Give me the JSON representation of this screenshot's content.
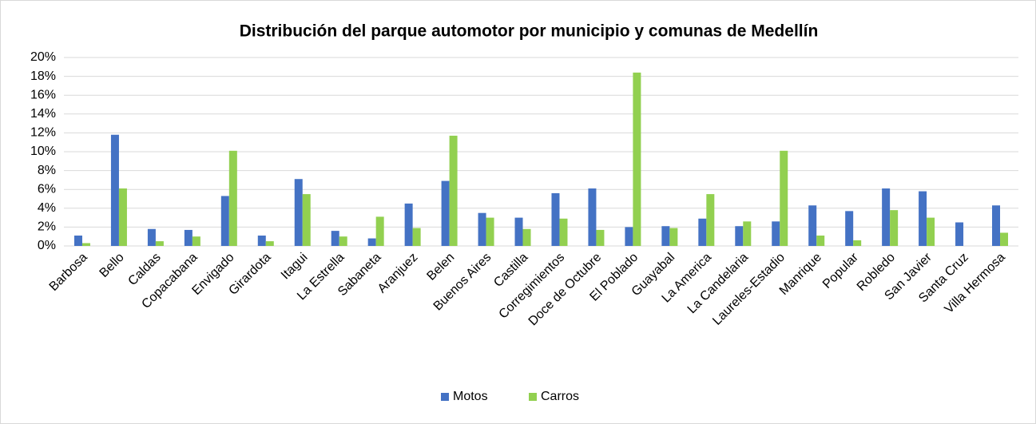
{
  "chart_data": {
    "type": "bar",
    "title": "Distribución del parque automotor por municipio y comunas de Medellín",
    "categories": [
      "Barbosa",
      "Bello",
      "Caldas",
      "Copacabana",
      "Envigado",
      "Girardota",
      "Itagui",
      "La Estrella",
      "Sabaneta",
      "Aranjuez",
      "Belen",
      "Buenos Aires",
      "Castilla",
      "Corregimientos",
      "Doce de Octubre",
      "El Poblado",
      "Guayabal",
      "La America",
      "La Candelaria",
      "Laureles-Estadio",
      "Manrique",
      "Popular",
      "Robledo",
      "San Javier",
      "Santa Cruz",
      "Villa Hermosa"
    ],
    "series": [
      {
        "name": "Motos",
        "color": "#4472c4",
        "values": [
          1.1,
          11.8,
          1.8,
          1.7,
          5.3,
          1.1,
          7.1,
          1.6,
          0.8,
          4.5,
          6.9,
          3.5,
          3.0,
          5.6,
          6.1,
          2.0,
          2.1,
          2.9,
          2.1,
          2.6,
          4.3,
          3.7,
          6.1,
          5.8,
          2.5,
          4.3
        ]
      },
      {
        "name": "Carros",
        "color": "#92d050",
        "values": [
          0.3,
          6.1,
          0.5,
          1.0,
          10.1,
          0.5,
          5.5,
          1.0,
          3.1,
          1.9,
          11.7,
          3.0,
          1.8,
          2.9,
          1.7,
          18.4,
          1.9,
          5.5,
          2.6,
          10.1,
          1.1,
          0.6,
          3.8,
          3.0,
          0,
          1.4
        ]
      }
    ],
    "ylim": [
      0,
      20
    ],
    "yticks": [
      {
        "value": 0,
        "label": "0%"
      },
      {
        "value": 2,
        "label": "2%"
      },
      {
        "value": 4,
        "label": "4%"
      },
      {
        "value": 6,
        "label": "6%"
      },
      {
        "value": 8,
        "label": "8%"
      },
      {
        "value": 10,
        "label": "10%"
      },
      {
        "value": 12,
        "label": "12%"
      },
      {
        "value": 14,
        "label": "14%"
      },
      {
        "value": 16,
        "label": "16%"
      },
      {
        "value": 18,
        "label": "18%"
      },
      {
        "value": 20,
        "label": "20%"
      }
    ],
    "grid": true,
    "legend": "bottom"
  }
}
